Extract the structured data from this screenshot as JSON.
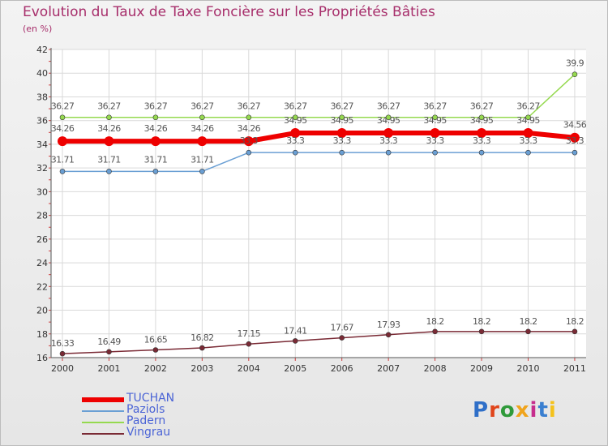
{
  "chart_data": {
    "type": "line",
    "title": "Evolution du Taux de Taxe Foncière sur les Propriétés Bâties",
    "ylabel": "(en %)",
    "xlabel": "",
    "categories": [
      "2000",
      "2001",
      "2002",
      "2003",
      "2004",
      "2005",
      "2006",
      "2007",
      "2008",
      "2009",
      "2010",
      "2011"
    ],
    "ylim": [
      16,
      42
    ],
    "yticks": [
      16,
      18,
      20,
      22,
      24,
      26,
      28,
      30,
      32,
      34,
      36,
      38,
      40,
      42
    ],
    "series": [
      {
        "name": "Padern",
        "color": "#95d94f",
        "values": [
          36.27,
          36.27,
          36.27,
          36.27,
          36.27,
          36.27,
          36.27,
          36.27,
          36.27,
          36.27,
          36.27,
          39.9
        ],
        "labels": [
          "36.27",
          "36.27",
          "36.27",
          "36.27",
          "36.27",
          "36.27",
          "36.27",
          "36.27",
          "36.27",
          "36.27",
          "36.27",
          "39.9"
        ]
      },
      {
        "name": "Paziols",
        "color": "#6a9fd4",
        "values": [
          31.71,
          31.71,
          31.71,
          31.71,
          33.3,
          33.3,
          33.3,
          33.3,
          33.3,
          33.3,
          33.3,
          33.3
        ],
        "labels": [
          "31.71",
          "31.71",
          "31.71",
          "31.71",
          "33.3",
          "33.3",
          "33.3",
          "33.3",
          "33.3",
          "33.3",
          "33.3",
          "33.3"
        ]
      },
      {
        "name": "TUCHAN",
        "color": "#ee0000",
        "values": [
          34.26,
          34.26,
          34.26,
          34.26,
          34.26,
          34.95,
          34.95,
          34.95,
          34.95,
          34.95,
          34.95,
          34.56
        ],
        "labels": [
          "34.26",
          "34.26",
          "34.26",
          "34.26",
          "34.26",
          "34.95",
          "34.95",
          "34.95",
          "34.95",
          "34.95",
          "34.95",
          "34.56"
        ]
      },
      {
        "name": "Vingrau",
        "color": "#7a2a35",
        "values": [
          16.33,
          16.49,
          16.65,
          16.82,
          17.15,
          17.41,
          17.67,
          17.93,
          18.2,
          18.2,
          18.2,
          18.2
        ],
        "labels": [
          "16.33",
          "16.49",
          "16.65",
          "16.82",
          "17.15",
          "17.41",
          "17.67",
          "17.93",
          "18.2",
          "18.2",
          "18.2",
          "18.2"
        ]
      }
    ],
    "legend": [
      "TUCHAN",
      "Paziols",
      "Padern",
      "Vingrau"
    ]
  },
  "logo": {
    "text": "Proxiti",
    "letters": [
      "P",
      "r",
      "o",
      "x",
      "i",
      "t",
      "i"
    ]
  }
}
